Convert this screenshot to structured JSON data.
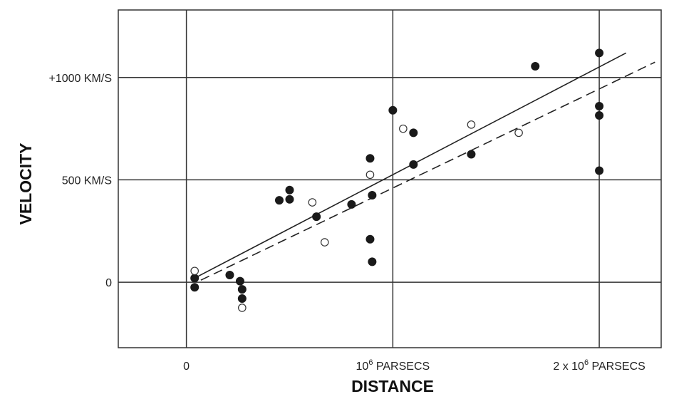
{
  "chart_data": {
    "type": "scatter",
    "title": "",
    "xlabel": "DISTANCE",
    "ylabel": "VELOCITY",
    "xlim": [
      -0.33,
      2.3
    ],
    "ylim": [
      -320,
      1330
    ],
    "grid": true,
    "x_ticks": [
      {
        "value": 0,
        "label": "0"
      },
      {
        "value": 1,
        "label": "10",
        "sup": "6",
        "suffix": " PARSECS"
      },
      {
        "value": 2,
        "label": "2 x 10",
        "sup": "6",
        "suffix": " PARSECS"
      }
    ],
    "y_ticks": [
      {
        "value": 1000,
        "label": "+1000 KM/S"
      },
      {
        "value": 500,
        "label": "500 KM/S"
      },
      {
        "value": 0,
        "label": "0"
      }
    ],
    "series": [
      {
        "marker": "filled",
        "points": [
          {
            "x": 0.04,
            "y": 20
          },
          {
            "x": 0.04,
            "y": -25
          },
          {
            "x": 0.21,
            "y": 35
          },
          {
            "x": 0.26,
            "y": 5
          },
          {
            "x": 0.27,
            "y": -35
          },
          {
            "x": 0.27,
            "y": -80
          },
          {
            "x": 0.45,
            "y": 400
          },
          {
            "x": 0.5,
            "y": 450
          },
          {
            "x": 0.5,
            "y": 405
          },
          {
            "x": 0.63,
            "y": 320
          },
          {
            "x": 0.8,
            "y": 380
          },
          {
            "x": 0.89,
            "y": 605
          },
          {
            "x": 0.9,
            "y": 425
          },
          {
            "x": 0.89,
            "y": 210
          },
          {
            "x": 0.9,
            "y": 100
          },
          {
            "x": 1.0,
            "y": 840
          },
          {
            "x": 1.1,
            "y": 730
          },
          {
            "x": 1.1,
            "y": 575
          },
          {
            "x": 1.38,
            "y": 625
          },
          {
            "x": 1.69,
            "y": 1055
          },
          {
            "x": 2.0,
            "y": 1120
          },
          {
            "x": 2.0,
            "y": 860
          },
          {
            "x": 2.0,
            "y": 815
          },
          {
            "x": 2.0,
            "y": 545
          }
        ]
      },
      {
        "marker": "open",
        "points": [
          {
            "x": 0.04,
            "y": 55
          },
          {
            "x": 0.27,
            "y": -125
          },
          {
            "x": 0.61,
            "y": 390
          },
          {
            "x": 0.67,
            "y": 195
          },
          {
            "x": 0.89,
            "y": 525
          },
          {
            "x": 1.05,
            "y": 750
          },
          {
            "x": 1.38,
            "y": 770
          },
          {
            "x": 1.61,
            "y": 730
          }
        ]
      }
    ],
    "lines": [
      {
        "style": "solid",
        "x": [
          0.04,
          2.13
        ],
        "y": [
          20,
          1120
        ]
      },
      {
        "style": "dashed",
        "x": [
          0.07,
          2.27
        ],
        "y": [
          10,
          1075
        ]
      }
    ]
  }
}
